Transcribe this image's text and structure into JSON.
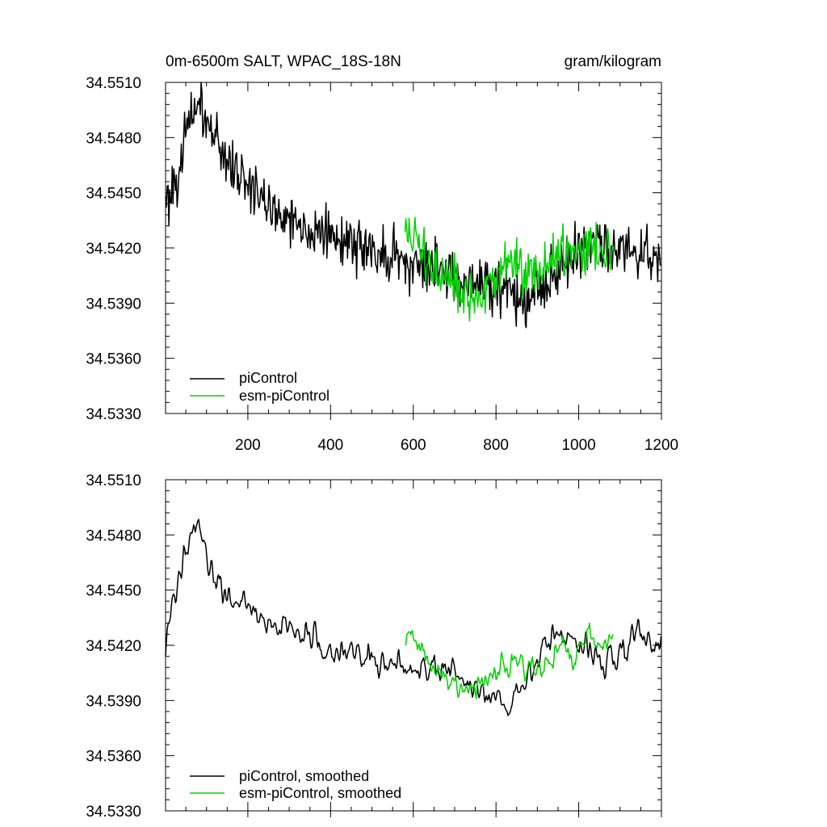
{
  "chart_data": [
    {
      "type": "line",
      "title": "0m-6500m SALT, WPAC_18S-18N",
      "units": "gram/kilogram",
      "xlabel": "",
      "ylabel": "",
      "xlim": [
        1,
        1200
      ],
      "ylim": [
        34.533,
        34.551
      ],
      "x_ticks": [
        "200",
        "400",
        "600",
        "800",
        "1000",
        "1200"
      ],
      "y_ticks": [
        "34.5330",
        "34.5360",
        "34.5390",
        "34.5420",
        "34.5450",
        "34.5480",
        "34.5510"
      ],
      "legend": "bottom-left",
      "series": [
        {
          "name": "piControl",
          "color": "#000000",
          "x_range": [
            1,
            1200
          ],
          "values": [
            34.5445,
            34.5455,
            34.547,
            34.549,
            34.55,
            34.5488,
            34.548,
            34.5472,
            34.5465,
            34.546,
            34.5455,
            34.545,
            34.5445,
            34.544,
            34.544,
            34.5436,
            34.5432,
            34.5432,
            34.543,
            34.5428,
            34.5425,
            34.5425,
            34.5422,
            34.5422,
            34.542,
            34.542,
            34.5418,
            34.5416,
            34.5414,
            34.5412,
            34.541,
            34.541,
            34.541,
            34.5408,
            34.5406,
            34.5405,
            34.5405,
            34.5404,
            34.5402,
            34.54,
            34.5398,
            34.5397,
            34.5396,
            34.5395,
            34.5395,
            34.5398,
            34.54,
            34.5405,
            34.541,
            34.5415,
            34.542,
            34.5425,
            34.5425,
            34.5422,
            34.542,
            34.542,
            34.5418,
            34.5418,
            34.5418,
            34.5418,
            34.5418
          ]
        },
        {
          "name": "esm-piControl",
          "color": "#00d200",
          "x_range": [
            580,
            1085
          ],
          "values": [
            34.543,
            34.5425,
            34.5418,
            34.541,
            34.5405,
            34.54,
            34.5398,
            34.5395,
            34.5392,
            34.539,
            34.5398,
            34.5405,
            34.541,
            34.5412,
            34.541,
            34.5408,
            34.5408,
            34.541,
            34.5415,
            34.5418,
            34.542,
            34.5422,
            34.5422,
            34.542,
            34.5418,
            34.542
          ]
        }
      ]
    },
    {
      "type": "line",
      "title": "",
      "xlabel": "",
      "ylabel": "",
      "xlim": [
        1,
        1200
      ],
      "ylim": [
        34.533,
        34.551
      ],
      "x_ticks": [],
      "y_ticks": [
        "34.5330",
        "34.5360",
        "34.5390",
        "34.5420",
        "34.5450",
        "34.5480",
        "34.5510"
      ],
      "legend": "bottom-left",
      "series": [
        {
          "name": "piControl, smoothed",
          "color": "#000000",
          "x_range": [
            1,
            1200
          ],
          "values": [
            34.542,
            34.544,
            34.547,
            34.5485,
            34.548,
            34.5465,
            34.5455,
            34.545,
            34.5448,
            34.5445,
            34.544,
            34.5436,
            34.5432,
            34.543,
            34.5432,
            34.5428,
            34.5424,
            34.5426,
            34.5424,
            34.542,
            34.5418,
            34.542,
            34.5416,
            34.5414,
            34.5416,
            34.5414,
            34.5412,
            34.541,
            34.5412,
            34.541,
            34.5408,
            34.541,
            34.541,
            34.5408,
            34.5405,
            34.5402,
            34.54,
            34.5398,
            34.5396,
            34.539,
            34.5388,
            34.5385,
            34.539,
            34.5398,
            34.5405,
            34.5412,
            34.542,
            34.5425,
            34.5428,
            34.5422,
            34.5418,
            34.5418,
            34.5415,
            34.5412,
            34.5414,
            34.5418,
            34.5422,
            34.5425,
            34.542,
            34.5418,
            34.542
          ]
        },
        {
          "name": "esm-piControl, smoothed",
          "color": "#00d200",
          "x_range": [
            580,
            1085
          ],
          "values": [
            34.543,
            34.5425,
            34.5418,
            34.541,
            34.5405,
            34.5402,
            34.54,
            34.5398,
            34.5396,
            34.5393,
            34.54,
            34.5408,
            34.5412,
            34.5414,
            34.541,
            34.5406,
            34.5406,
            34.541,
            34.5415,
            34.5418,
            34.542,
            34.5422,
            34.5424,
            34.5422,
            34.542,
            34.5422
          ]
        }
      ]
    }
  ]
}
